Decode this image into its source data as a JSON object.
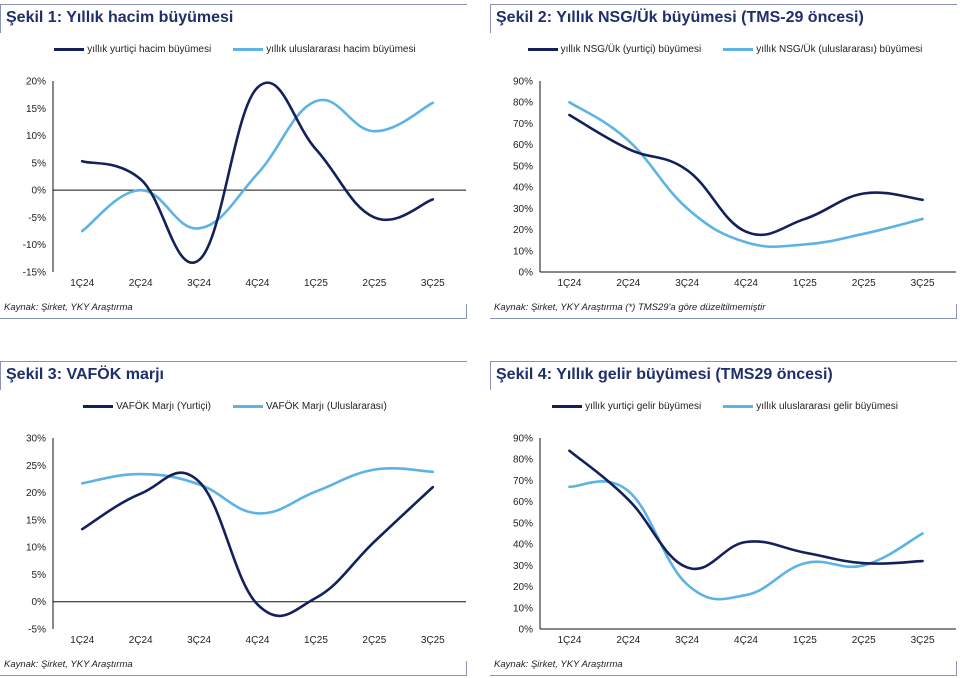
{
  "colors": {
    "domestic": "#14205a",
    "international": "#5cb3e4",
    "title": "#1f2f6b"
  },
  "chart_data": [
    {
      "id": "chart1",
      "type": "line",
      "title": "Şekil 1: Yıllık hacim büyümesi",
      "categories": [
        "1Ç24",
        "2Ç24",
        "3Ç24",
        "4Ç24",
        "1Ç25",
        "2Ç25",
        "3Ç25"
      ],
      "series": [
        {
          "name": "yıllık yurtiçi hacim büyümesi",
          "values": [
            5.3,
            2,
            -12.8,
            18.8,
            7.5,
            -5,
            -1.7
          ]
        },
        {
          "name": "yıllık uluslararası hacim büyümesi",
          "values": [
            -7.5,
            0,
            -7,
            3,
            16.3,
            10.8,
            16
          ]
        }
      ],
      "yticks": [
        "20%",
        "15%",
        "10%",
        "5%",
        "0%",
        "-5%",
        "-10%",
        "-15%"
      ],
      "ylim": [
        -15,
        20
      ],
      "ystep": 5,
      "xaxis_at_zero": true,
      "grid": false,
      "legend": "top",
      "source": "Kaynak: Şirket, YKY Araştırma"
    },
    {
      "id": "chart2",
      "type": "line",
      "title": "Şekil 2: Yıllık NSG/Ük büyümesi (TMS-29 öncesi)",
      "categories": [
        "1Ç24",
        "2Ç24",
        "3Ç24",
        "4Ç24",
        "1Ç25",
        "2Ç25",
        "3Ç25"
      ],
      "series": [
        {
          "name": "yıllık NSG/Ük (yurtiçi) büyümesi",
          "values": [
            74,
            58,
            48,
            19,
            25,
            37,
            34
          ]
        },
        {
          "name": "yıllık NSG/Ük (uluslararası) büyümesi",
          "values": [
            80,
            62,
            30,
            14,
            13,
            18,
            25
          ]
        }
      ],
      "yticks": [
        "90%",
        "80%",
        "70%",
        "60%",
        "50%",
        "40%",
        "30%",
        "20%",
        "10%",
        "0%"
      ],
      "ylim": [
        0,
        90
      ],
      "ystep": 10,
      "xaxis_at_zero": true,
      "grid": false,
      "legend": "top",
      "source": "Kaynak: Şirket, YKY Araştırma (*) TMS29'a göre düzeltilmemiştir"
    },
    {
      "id": "chart3",
      "type": "line",
      "title": "Şekil 3: VAFÖK marjı",
      "categories": [
        "1Ç24",
        "2Ç24",
        "3Ç24",
        "4Ç24",
        "1Ç25",
        "2Ç25",
        "3Ç25"
      ],
      "series": [
        {
          "name": "VAFÖK Marjı (Yurtiçi)",
          "values": [
            13.3,
            19.8,
            22,
            -0.5,
            0.7,
            11,
            21
          ]
        },
        {
          "name": "VAFÖK Marjı (Uluslararası)",
          "values": [
            21.7,
            23.4,
            21.5,
            16.2,
            20.2,
            24.2,
            23.8
          ]
        }
      ],
      "yticks": [
        "30%",
        "25%",
        "20%",
        "15%",
        "10%",
        "5%",
        "0%",
        "-5%"
      ],
      "ylim": [
        -5,
        30
      ],
      "ystep": 5,
      "xaxis_at_zero": true,
      "grid": false,
      "legend": "top",
      "source": "Kaynak: Şirket, YKY Araştırma"
    },
    {
      "id": "chart4",
      "type": "line",
      "title": "Şekil 4: Yıllık gelir büyümesi (TMS29 öncesi)",
      "categories": [
        "1Ç24",
        "2Ç24",
        "3Ç24",
        "4Ç24",
        "1Ç25",
        "2Ç25",
        "3Ç25"
      ],
      "series": [
        {
          "name": "yıllık yurtiçi gelir büyümesi",
          "values": [
            84,
            61,
            29,
            41,
            36,
            31,
            32
          ]
        },
        {
          "name": "yıllık uluslararası gelir büyümesi",
          "values": [
            67,
            65,
            21,
            16,
            31,
            30,
            45
          ]
        }
      ],
      "yticks": [
        "90%",
        "80%",
        "70%",
        "60%",
        "50%",
        "40%",
        "30%",
        "20%",
        "10%",
        "0%"
      ],
      "ylim": [
        0,
        90
      ],
      "ystep": 10,
      "xaxis_at_zero": true,
      "grid": false,
      "legend": "top",
      "source": "Kaynak: Şirket, YKY Araştırma"
    }
  ]
}
